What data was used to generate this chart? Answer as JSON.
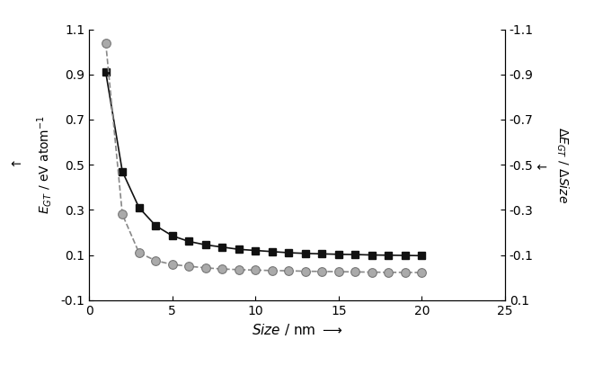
{
  "size_EGT": [
    1,
    2,
    3,
    4,
    5,
    6,
    7,
    8,
    9,
    10,
    11,
    12,
    13,
    14,
    15,
    16,
    17,
    18,
    19,
    20
  ],
  "EGT": [
    0.91,
    0.47,
    0.31,
    0.23,
    0.185,
    0.16,
    0.145,
    0.135,
    0.125,
    0.12,
    0.115,
    0.11,
    0.107,
    0.105,
    0.103,
    0.102,
    0.1,
    0.099,
    0.098,
    0.097
  ],
  "size_dEGT": [
    1,
    2,
    3,
    4,
    5,
    6,
    7,
    8,
    9,
    10,
    11,
    12,
    13,
    14,
    15,
    16,
    17,
    18,
    19,
    20
  ],
  "dEGT": [
    -1.04,
    -0.28,
    -0.11,
    -0.075,
    -0.058,
    -0.05,
    -0.043,
    -0.038,
    -0.035,
    -0.033,
    -0.031,
    -0.03,
    -0.028,
    -0.027,
    -0.026,
    -0.025,
    -0.024,
    -0.023,
    -0.023,
    -0.022
  ],
  "xlim": [
    0,
    25
  ],
  "ylim_left": [
    -0.1,
    1.1
  ],
  "ylim_right": [
    0.1,
    -1.1
  ],
  "yticks_left": [
    -0.1,
    0.1,
    0.3,
    0.5,
    0.7,
    0.9,
    1.1
  ],
  "yticks_right": [
    0.1,
    -0.1,
    -0.3,
    -0.5,
    -0.7,
    -0.9,
    -1.1
  ],
  "xticks": [
    0,
    5,
    10,
    15,
    20,
    25
  ],
  "background_color": "#ffffff",
  "square_color": "#111111",
  "circle_facecolor": "#aaaaaa",
  "circle_edgecolor": "#777777",
  "line_color_solid": "#111111",
  "line_color_dashed": "#888888"
}
